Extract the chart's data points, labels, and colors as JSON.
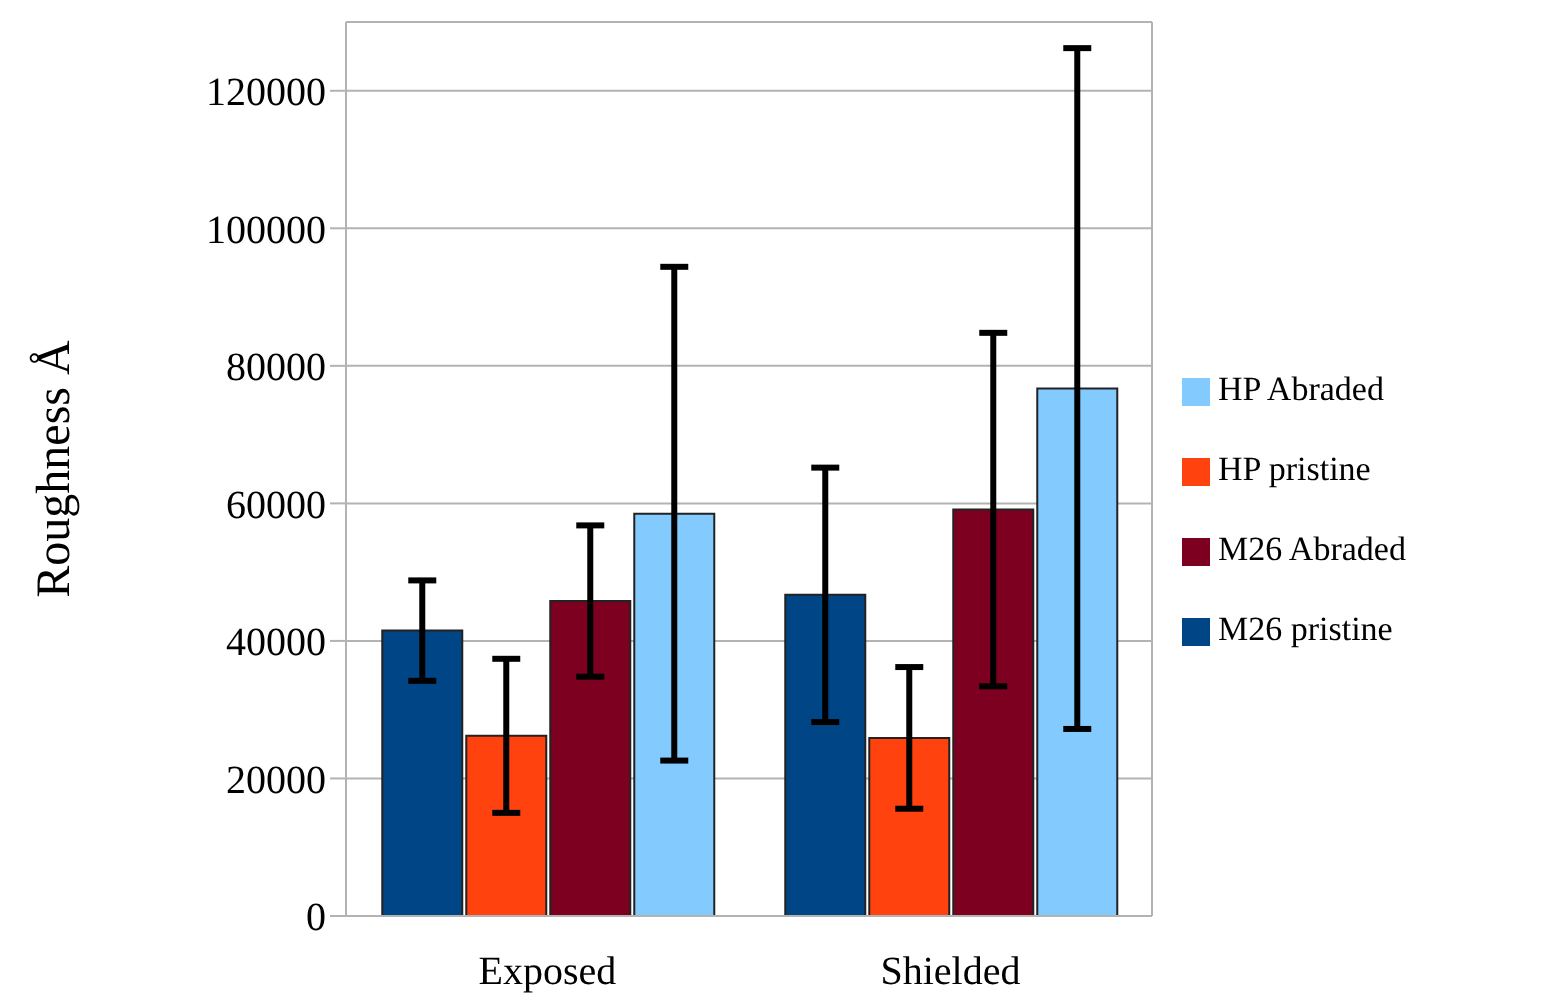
{
  "chart_data": {
    "type": "bar",
    "ylabel": "Roughness Å",
    "categories": [
      "Exposed",
      "Shielded"
    ],
    "series": [
      {
        "name": "M26 pristine",
        "color": "#004586",
        "values": [
          41500,
          46700
        ],
        "errors": [
          7300,
          18500
        ]
      },
      {
        "name": "HP pristine",
        "color": "#ff420e",
        "values": [
          26200,
          25900
        ],
        "errors": [
          11200,
          10300
        ]
      },
      {
        "name": "M26 Abraded",
        "color": "#7e0021",
        "values": [
          45800,
          59100
        ],
        "errors": [
          11000,
          25700
        ]
      },
      {
        "name": "HP Abraded",
        "color": "#83caff",
        "values": [
          58500,
          76700
        ],
        "errors": [
          35900,
          49500
        ]
      }
    ],
    "ylim": [
      0,
      130000
    ],
    "yticks": [
      0,
      20000,
      40000,
      60000,
      80000,
      100000,
      120000
    ],
    "grid": "y",
    "legend": "right"
  }
}
